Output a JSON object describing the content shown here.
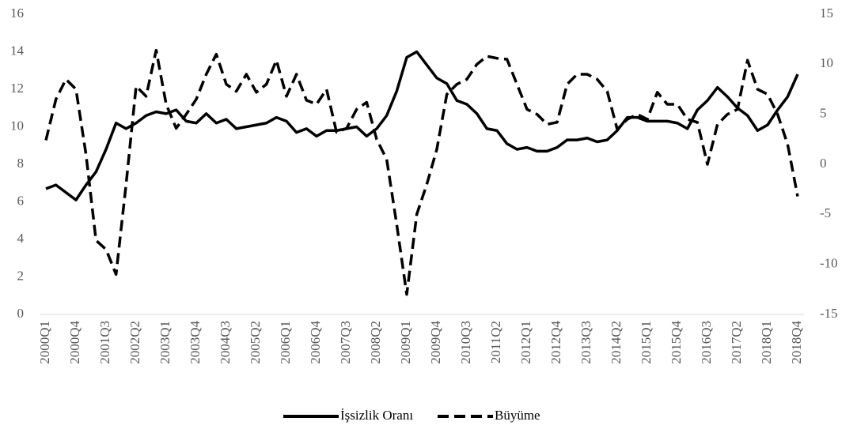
{
  "chart_data": {
    "type": "line",
    "categories": [
      "2000Q1",
      null,
      null,
      "2000Q4",
      null,
      null,
      "2001Q3",
      null,
      null,
      "2002Q2",
      null,
      null,
      "2003Q1",
      null,
      null,
      "2003Q4",
      null,
      null,
      "2004Q3",
      null,
      null,
      "2005Q2",
      null,
      null,
      "2006Q1",
      null,
      null,
      "2006Q4",
      null,
      null,
      "2007Q3",
      null,
      null,
      "2008Q2",
      null,
      null,
      "2009Q1",
      null,
      null,
      "2009Q4",
      null,
      null,
      "2010Q3",
      null,
      null,
      "2011Q2",
      null,
      null,
      "2012Q1",
      null,
      null,
      "2012Q4",
      null,
      null,
      "2013Q3",
      null,
      null,
      "2014Q2",
      null,
      null,
      "2015Q1",
      null,
      null,
      "2015Q4",
      null,
      null,
      "2016Q3",
      null,
      null,
      "2017Q2",
      null,
      null,
      "2018Q1",
      null,
      null,
      "2018Q4"
    ],
    "series": [
      {
        "name": "İşsizlik Oranı",
        "color": "#000000",
        "line_style": "solid",
        "axis": "y",
        "values": [
          6.7,
          6.9,
          6.5,
          6.1,
          6.9,
          7.6,
          8.8,
          10.2,
          9.9,
          10.2,
          10.6,
          10.8,
          10.7,
          10.9,
          10.3,
          10.2,
          10.7,
          10.2,
          10.4,
          9.9,
          10.0,
          10.1,
          10.2,
          10.5,
          10.3,
          9.7,
          9.9,
          9.5,
          9.8,
          9.8,
          9.9,
          10.0,
          9.5,
          9.9,
          10.6,
          11.9,
          13.7,
          14.0,
          13.3,
          12.6,
          12.3,
          11.4,
          11.2,
          10.7,
          9.9,
          9.8,
          9.1,
          8.8,
          8.9,
          8.7,
          8.7,
          8.9,
          9.3,
          9.3,
          9.4,
          9.2,
          9.3,
          9.8,
          10.5,
          10.5,
          10.3,
          10.3,
          10.3,
          10.2,
          9.9,
          10.9,
          11.4,
          12.1,
          11.6,
          11.0,
          10.6,
          9.8,
          10.1,
          10.9,
          11.6,
          12.8
        ]
      },
      {
        "name": "Büyüme",
        "color": "#000000",
        "line_style": "dashed",
        "axis": "y2",
        "values": [
          2.4,
          6.5,
          8.5,
          7.5,
          1.0,
          -7.6,
          -8.5,
          -11.0,
          -2.0,
          7.8,
          6.8,
          11.4,
          6.0,
          3.6,
          5.0,
          6.5,
          9.0,
          11.0,
          8.0,
          7.3,
          9.0,
          7.2,
          8.0,
          10.4,
          6.8,
          9.0,
          6.4,
          6.0,
          7.5,
          3.2,
          3.6,
          5.5,
          6.2,
          2.5,
          0.5,
          -6.0,
          -13.0,
          -5.0,
          -2.0,
          1.5,
          7.0,
          8.0,
          8.5,
          10.0,
          10.8,
          10.6,
          10.5,
          8.0,
          5.5,
          5.0,
          4.0,
          4.2,
          8.0,
          9.0,
          9.0,
          8.5,
          7.3,
          3.5,
          4.5,
          5.0,
          4.5,
          7.2,
          6.0,
          6.0,
          4.5,
          4.2,
          0.0,
          4.0,
          5.0,
          5.5,
          10.4,
          7.5,
          7.0,
          5.0,
          2.0,
          -3.2
        ]
      }
    ],
    "ylim": [
      0,
      16
    ],
    "yticks": [
      0,
      2,
      4,
      6,
      8,
      10,
      12,
      14,
      16
    ],
    "y2lim": [
      -15,
      15
    ],
    "y2ticks": [
      -15,
      -10,
      -5,
      0,
      5,
      10,
      15
    ],
    "grid": false,
    "legend": "bottom"
  }
}
